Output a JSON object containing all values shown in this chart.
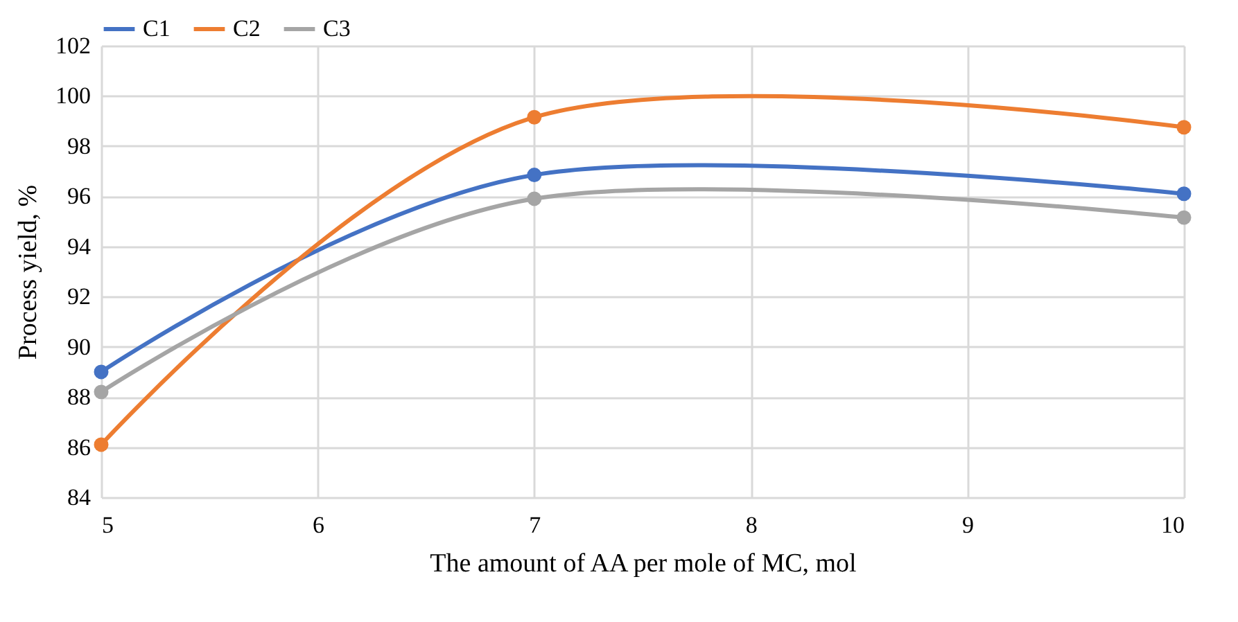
{
  "chart_data": {
    "type": "line",
    "xlabel": "The amount of AA per mole of MC, mol",
    "ylabel": "Process yield, %",
    "x": [
      5,
      7,
      10
    ],
    "series": [
      {
        "name": "C1",
        "color": "#4472c4",
        "values": [
          89.0,
          96.85,
          96.1
        ]
      },
      {
        "name": "C2",
        "color": "#ed7d31",
        "values": [
          86.1,
          99.15,
          98.75
        ]
      },
      {
        "name": "C3",
        "color": "#a5a5a5",
        "values": [
          88.2,
          95.9,
          95.15
        ]
      }
    ],
    "xlim": [
      5,
      10
    ],
    "xticks": [
      5,
      6,
      7,
      8,
      9,
      10
    ],
    "ylim": [
      84,
      102
    ],
    "yticks": [
      84,
      86,
      88,
      90,
      92,
      94,
      96,
      98,
      100,
      102
    ],
    "grid": true,
    "legend": "top",
    "marker": "circle",
    "line_style": "solid"
  }
}
